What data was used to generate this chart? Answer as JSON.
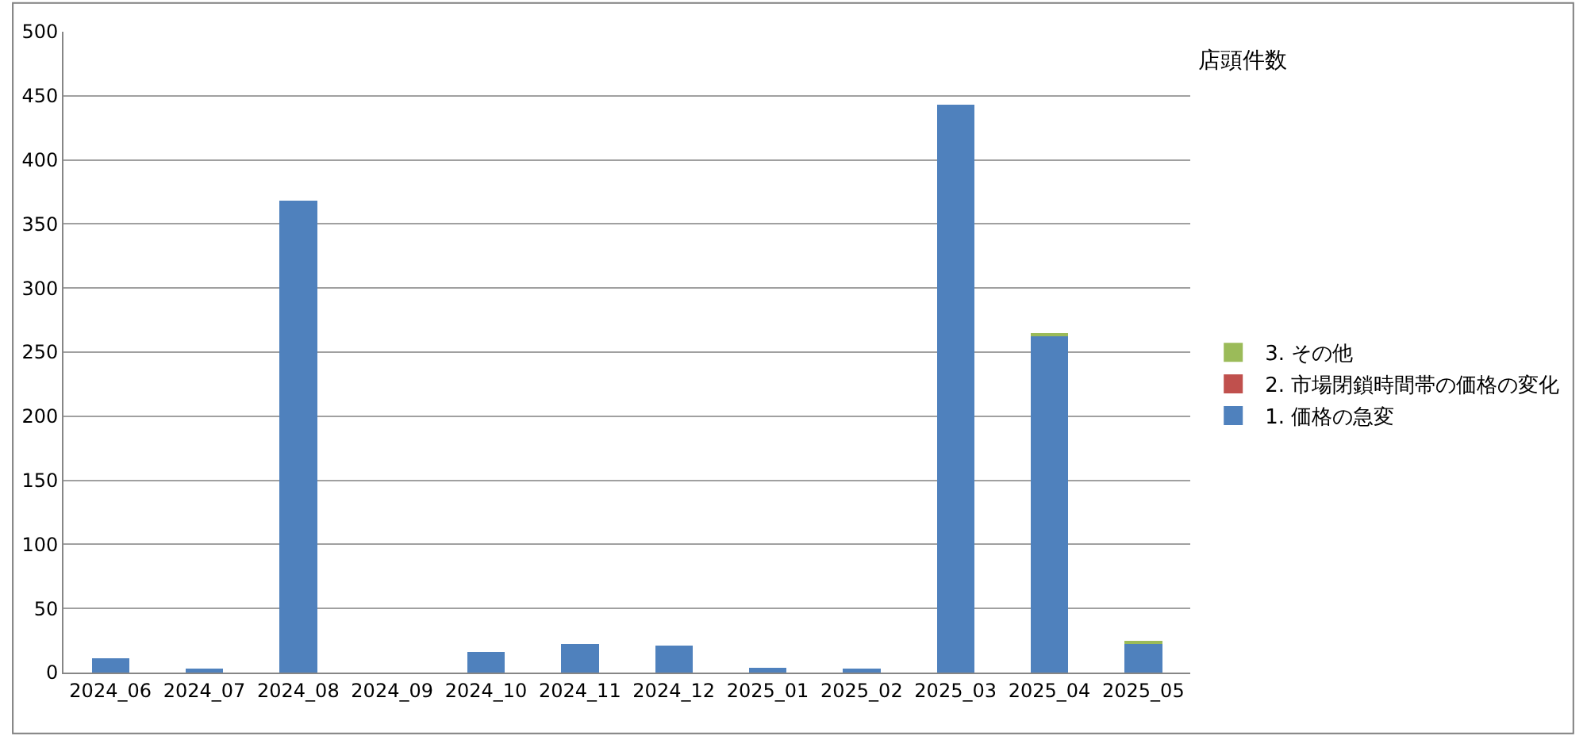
{
  "chart_data": {
    "type": "bar",
    "title": "店頭件数",
    "stacked": true,
    "legend": "right",
    "grid": "y",
    "categories": [
      "2024_06",
      "2024_07",
      "2024_08",
      "2024_09",
      "2024_10",
      "2024_11",
      "2024_12",
      "2025_01",
      "2025_02",
      "2025_03",
      "2025_04",
      "2025_05"
    ],
    "series": [
      {
        "name": "1. 価格の急変",
        "color": "#4f81bd",
        "values": [
          11,
          3,
          368,
          0,
          16,
          22,
          21,
          4,
          3,
          443,
          263,
          23
        ]
      },
      {
        "name": "2. 市場閉鎖時間帯の価格の変化",
        "color": "#c0504d",
        "values": [
          0,
          0,
          0,
          0,
          0,
          0,
          0,
          0,
          0,
          0,
          0,
          0
        ]
      },
      {
        "name": "3. その他",
        "color": "#9bbb59",
        "values": [
          0,
          0,
          0,
          0,
          0,
          0,
          0,
          0,
          0,
          0,
          1,
          1
        ]
      }
    ],
    "ylim": [
      0,
      500
    ],
    "yticks": [
      0,
      50,
      100,
      150,
      200,
      250,
      300,
      350,
      400,
      450,
      500
    ]
  }
}
